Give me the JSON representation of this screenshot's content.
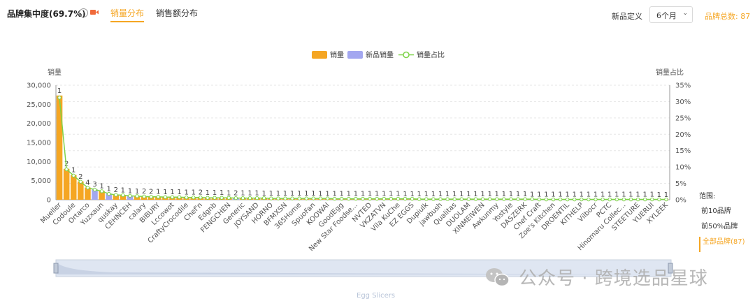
{
  "header": {
    "title": "品牌集中度(69.7%)",
    "help_glyph": "?",
    "tabs": [
      {
        "label": "销量分布",
        "active": true
      },
      {
        "label": "销售额分布",
        "active": false
      }
    ],
    "definition_label": "新品定义",
    "definition_value": "6个月",
    "brand_total": "品牌总数: 87"
  },
  "range_panel": {
    "title": "范围:",
    "items": [
      {
        "label": "前10品牌",
        "active": false
      },
      {
        "label": "前50%品牌",
        "active": false
      },
      {
        "label": "全部品牌(87)",
        "active": true
      }
    ]
  },
  "watermark": "公众号 · 跨境选品星球",
  "slider_label": "Egg Slicers",
  "colors": {
    "sales": "#f5a623",
    "new_sales": "#a3a7f0",
    "share": "#7ed348",
    "accent": "#f5a623"
  },
  "chart_data": {
    "type": "bar",
    "legend": [
      "销量",
      "新品销量",
      "销量占比"
    ],
    "legend_position": "top-center",
    "ylabel_left": "销量",
    "ylabel_right": "销量占比",
    "ylim_left": [
      0,
      30000
    ],
    "ylim_right": [
      0,
      35
    ],
    "yticks_left": [
      "0",
      "5,000",
      "10,000",
      "15,000",
      "20,000",
      "25,000",
      "30,000"
    ],
    "yticks_right": [
      "0%",
      "5%",
      "10%",
      "15%",
      "20%",
      "25%",
      "30%",
      "35%"
    ],
    "grid": true,
    "x_tick_labels": [
      "Mueller",
      "Codoule",
      "Ortarco",
      "Yuzxaun",
      "quskay",
      "CEHNCEH",
      "calary",
      "BIBURY",
      "Lccowot",
      "CraftyCrocodile",
      "Chef'n",
      "Edgnb",
      "FENGCHEN",
      "Generic",
      "JOYSAND",
      "HORNO",
      "BFMXSN",
      "365Home",
      "SpuoFan",
      "KOOWAI",
      "GoodEgg",
      "New Star Foodse...",
      "NVTED",
      "VKZATVN",
      "Vila KuChe",
      "EZ EGGS",
      "Dupiulk",
      "jawbush",
      "Qualitas",
      "DUOLAM",
      "XINMEIWEN",
      "Awkunmy",
      "Yostyle",
      "DASZERK",
      "Chef Craft",
      "Zoe's Kitchen",
      "DROENTIL",
      "KITHELP",
      "Vilbocr",
      "PCTC",
      "Hinomaru Collec...",
      "STEETURE",
      "YUERUI",
      "XYLEEK"
    ],
    "brand_count_axis": 87,
    "series": [
      {
        "name": "销量",
        "values": [
          27300,
          8100,
          6500,
          4800,
          3200,
          2700,
          2300,
          1600,
          1300,
          1200,
          1050,
          950,
          900,
          820,
          780,
          740,
          710,
          690,
          650,
          620,
          600,
          560,
          540,
          520,
          500,
          480,
          460,
          440,
          420,
          400,
          390,
          380,
          370,
          360,
          350,
          340,
          330,
          320,
          310,
          300,
          290,
          285,
          280,
          270,
          260,
          250,
          240,
          235,
          230,
          225,
          220,
          215,
          210,
          205,
          200,
          195,
          190,
          185,
          180,
          175,
          170,
          165,
          160,
          155,
          150,
          145,
          140,
          135,
          130,
          125,
          120,
          115,
          110,
          105,
          100,
          95,
          90,
          85,
          80,
          75,
          70,
          65,
          60,
          55,
          50,
          45,
          40
        ]
      },
      {
        "name": "新品销量",
        "values": [
          0,
          0,
          0,
          0,
          0,
          2700,
          0,
          1600,
          0,
          0,
          1200,
          0,
          0,
          0,
          0,
          0,
          0,
          0,
          0,
          0,
          0,
          0,
          0,
          0,
          0,
          620,
          0,
          0,
          0,
          0,
          0,
          0,
          0,
          0,
          0,
          0,
          0,
          0,
          0,
          0,
          0,
          0,
          0,
          0,
          0,
          0,
          0,
          0,
          0,
          0,
          0,
          0,
          0,
          0,
          0,
          0,
          0,
          0,
          0,
          0,
          0,
          0,
          0,
          0,
          0,
          0,
          0,
          0,
          0,
          0,
          0,
          0,
          0,
          0,
          0,
          0,
          0,
          0,
          0,
          0,
          0,
          0,
          0,
          0,
          0,
          0,
          0
        ]
      },
      {
        "name": "销量占比",
        "values": [
          31.2,
          9.3,
          7.4,
          5.5,
          3.7,
          3.1,
          2.6,
          1.8,
          1.5,
          1.4,
          1.2,
          1.1,
          1.0,
          0.9,
          0.9,
          0.8,
          0.8,
          0.8,
          0.7,
          0.7,
          0.7,
          0.6,
          0.6,
          0.6,
          0.6,
          0.5,
          0.5,
          0.5,
          0.5,
          0.5,
          0.4,
          0.4,
          0.4,
          0.4,
          0.4,
          0.4,
          0.4,
          0.4,
          0.4,
          0.3,
          0.3,
          0.3,
          0.3,
          0.3,
          0.3,
          0.3,
          0.3,
          0.3,
          0.3,
          0.3,
          0.3,
          0.2,
          0.2,
          0.2,
          0.2,
          0.2,
          0.2,
          0.2,
          0.2,
          0.2,
          0.2,
          0.2,
          0.2,
          0.2,
          0.2,
          0.2,
          0.2,
          0.2,
          0.1,
          0.1,
          0.1,
          0.1,
          0.1,
          0.1,
          0.1,
          0.1,
          0.1,
          0.1,
          0.1,
          0.1,
          0.1,
          0.1,
          0.1,
          0.1,
          0.1,
          0.1,
          0.1
        ]
      }
    ],
    "bar_labels": [
      "1",
      "2",
      "1",
      "2",
      "4",
      "3",
      "1",
      "1",
      "2",
      "1",
      "1",
      "1",
      "2",
      "2",
      "1",
      "1",
      "1",
      "1",
      "1",
      "1",
      "2",
      "1",
      "1",
      "1",
      "1",
      "2",
      "1",
      "1",
      "1",
      "1",
      "1",
      "1",
      "1",
      "1",
      "1",
      "1",
      "1",
      "1",
      "1",
      "1",
      "1",
      "1",
      "1",
      "1",
      "1",
      "1",
      "1",
      "1",
      "1",
      "1",
      "1",
      "1",
      "1",
      "1",
      "1",
      "1",
      "1",
      "1",
      "1",
      "1",
      "1",
      "1",
      "1",
      "1",
      "1",
      "1",
      "1",
      "1",
      "1",
      "1",
      "1",
      "1",
      "1",
      "1",
      "1",
      "1",
      "1",
      "1",
      "1",
      "1",
      "1",
      "1",
      "1",
      "1",
      "1",
      "1",
      "1"
    ]
  }
}
